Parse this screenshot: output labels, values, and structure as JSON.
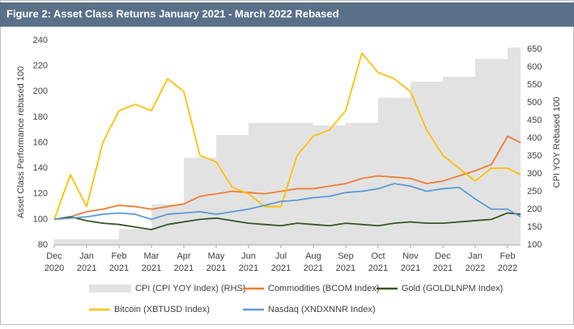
{
  "chart_data": {
    "type": "line",
    "title": "Figure 2: Asset Class Returns January 2021 - March 2022 Rebased",
    "y_label": "Asset Class Performance rebased 100",
    "y2_label": "CPI YOY Rebased 100",
    "xlim": [
      0,
      14.4
    ],
    "xticks": [
      {
        "value": 0,
        "label": "Dec 2020"
      },
      {
        "value": 1,
        "label": "Jan 2021"
      },
      {
        "value": 2,
        "label": "Feb 2021"
      },
      {
        "value": 3,
        "label": "Mar 2021"
      },
      {
        "value": 4,
        "label": "Apr 2021"
      },
      {
        "value": 5,
        "label": "May 2021"
      },
      {
        "value": 6,
        "label": "Jun 2021"
      },
      {
        "value": 7,
        "label": "Jul 2021"
      },
      {
        "value": 8,
        "label": "Aug 2021"
      },
      {
        "value": 9,
        "label": "Sep 2021"
      },
      {
        "value": 10,
        "label": "Oct 2021"
      },
      {
        "value": 11,
        "label": "Nov 2021"
      },
      {
        "value": 12,
        "label": "Dec 2021"
      },
      {
        "value": 13,
        "label": "Jan 2022"
      },
      {
        "value": 14,
        "label": "Feb 2022"
      }
    ],
    "ylim": [
      80,
      240
    ],
    "yticks": [
      80,
      100,
      120,
      140,
      160,
      180,
      200,
      220,
      240
    ],
    "y2lim": [
      100,
      675
    ],
    "y2ticks": [
      100,
      150,
      200,
      250,
      300,
      350,
      400,
      450,
      500,
      550,
      600,
      650
    ],
    "x": [
      0,
      0.5,
      1,
      1.5,
      2,
      2.5,
      3,
      3.5,
      4,
      4.5,
      5,
      5.5,
      6,
      6.5,
      7,
      7.5,
      8,
      8.5,
      9,
      9.5,
      10,
      10.5,
      11,
      11.5,
      12,
      12.5,
      13,
      13.5,
      14,
      14.4
    ],
    "series": [
      {
        "name": "CPI (CPI YOY Index) (RHS)",
        "color": "#e2e2e2",
        "axis": "y2",
        "kind": "step",
        "x": [
          0,
          1,
          2,
          3,
          4,
          5,
          6,
          7,
          8,
          9,
          10,
          11,
          12,
          13,
          14
        ],
        "values": [
          116,
          116,
          145,
          214,
          345,
          409,
          443,
          443,
          436,
          443,
          514,
          559,
          573,
          623,
          655
        ]
      },
      {
        "name": "Commodities (BCOM Index)",
        "color": "#ed7d31",
        "values": [
          100,
          102,
          106,
          108,
          111,
          110,
          108,
          110,
          112,
          118,
          120,
          122,
          121,
          120,
          122,
          124,
          124,
          126,
          128,
          132,
          134,
          133,
          132,
          128,
          130,
          134,
          138,
          143,
          165,
          160
        ]
      },
      {
        "name": "Gold (GOLDLNPM Index)",
        "color": "#375623",
        "values": [
          100,
          102,
          99,
          97,
          96,
          94,
          92,
          96,
          98,
          100,
          101,
          99,
          97,
          96,
          95,
          97,
          96,
          95,
          97,
          96,
          95,
          97,
          98,
          97,
          97,
          98,
          99,
          100,
          105,
          104
        ]
      },
      {
        "name": "Bitcoin (XBTUSD Index)",
        "color": "#ffc000",
        "values": [
          100,
          135,
          110,
          160,
          185,
          190,
          185,
          210,
          200,
          150,
          145,
          125,
          120,
          110,
          110,
          150,
          165,
          170,
          185,
          230,
          215,
          210,
          200,
          170,
          150,
          140,
          130,
          140,
          140,
          135
        ]
      },
      {
        "name": "Nasdaq (XNDXNNR Index)",
        "color": "#5b9bd5",
        "values": [
          100,
          101,
          102,
          104,
          105,
          104,
          100,
          104,
          105,
          106,
          104,
          106,
          108,
          111,
          114,
          115,
          117,
          118,
          121,
          122,
          124,
          128,
          126,
          122,
          124,
          125,
          116,
          108,
          108,
          102
        ]
      }
    ]
  }
}
